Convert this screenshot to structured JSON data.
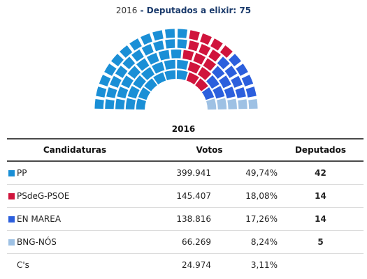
{
  "title": {
    "year": "2016",
    "separator": " - ",
    "label": "Deputados a elixir: ",
    "total": "75"
  },
  "table": {
    "year": "2016",
    "headers": {
      "party": "Candidaturas",
      "votes": "Votos",
      "seats": "Deputados"
    },
    "rows": [
      {
        "party": "PP",
        "votes": "399.941",
        "pct": "49,74%",
        "seats": "42",
        "color": "#1a8fd6"
      },
      {
        "party": "PSdeG-PSOE",
        "votes": "145.407",
        "pct": "18,08%",
        "seats": "14",
        "color": "#d0143c"
      },
      {
        "party": "EN MAREA",
        "votes": "138.816",
        "pct": "17,26%",
        "seats": "14",
        "color": "#2c5fdd"
      },
      {
        "party": "BNG-NÓS",
        "votes": "66.269",
        "pct": "8,24%",
        "seats": "5",
        "color": "#9ec1e4"
      },
      {
        "party": "C's",
        "votes": "24.974",
        "pct": "3,11%",
        "seats": "",
        "color": ""
      }
    ]
  },
  "chart_data": {
    "type": "parliament",
    "total_seats": 75,
    "series": [
      {
        "name": "PP",
        "seats": 42,
        "color": "#1a8fd6"
      },
      {
        "name": "PSdeG-PSOE",
        "seats": 14,
        "color": "#d0143c"
      },
      {
        "name": "EN MAREA",
        "seats": 14,
        "color": "#2c5fdd"
      },
      {
        "name": "BNG-NÓS",
        "seats": 5,
        "color": "#9ec1e4"
      }
    ]
  }
}
